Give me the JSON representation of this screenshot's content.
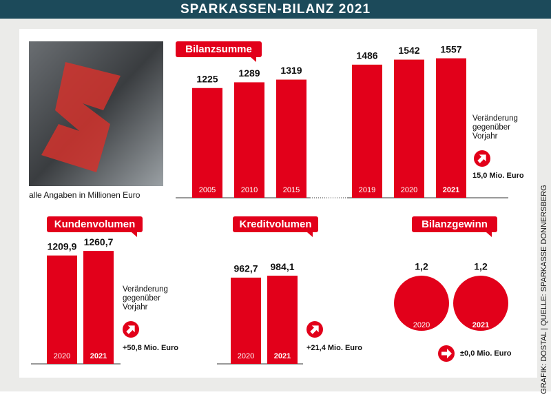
{
  "header": {
    "title": "SPARKASSEN-BILANZ 2021"
  },
  "note": "alle Angaben in Millionen Euro",
  "credit": "GRAFIK: DOSTAL | QUELLE: SPARKASSE DONNERSBERG",
  "chart_data": [
    {
      "type": "bar",
      "title": "Bilanzsumme",
      "categories": [
        "2005",
        "2010",
        "2015",
        "2019",
        "2020",
        "2021"
      ],
      "values": [
        1225,
        1289,
        1319,
        1486,
        1542,
        1557
      ],
      "color": "#e2001a",
      "change_label": "Veränderung gegenüber Vorjahr",
      "change": "15,0 Mio. Euro"
    },
    {
      "type": "bar",
      "title": "Kundenvolumen",
      "categories": [
        "2020",
        "2021"
      ],
      "values": [
        1209.9,
        1260.7
      ],
      "value_labels": [
        "1209,9",
        "1260,7"
      ],
      "color": "#e2001a",
      "change_label": "Veränderung gegenüber Vorjahr",
      "change": "+50,8 Mio. Euro"
    },
    {
      "type": "bar",
      "title": "Kreditvolumen",
      "categories": [
        "2020",
        "2021"
      ],
      "values": [
        962.7,
        984.1
      ],
      "value_labels": [
        "962,7",
        "984,1"
      ],
      "color": "#e2001a",
      "change": "+21,4 Mio. Euro"
    },
    {
      "type": "bubble",
      "title": "Bilanzgewinn",
      "categories": [
        "2020",
        "2021"
      ],
      "values": [
        1.2,
        1.2
      ],
      "value_labels": [
        "1,2",
        "1,2"
      ],
      "color": "#e2001a",
      "change": "±0,0 Mio. Euro"
    }
  ]
}
